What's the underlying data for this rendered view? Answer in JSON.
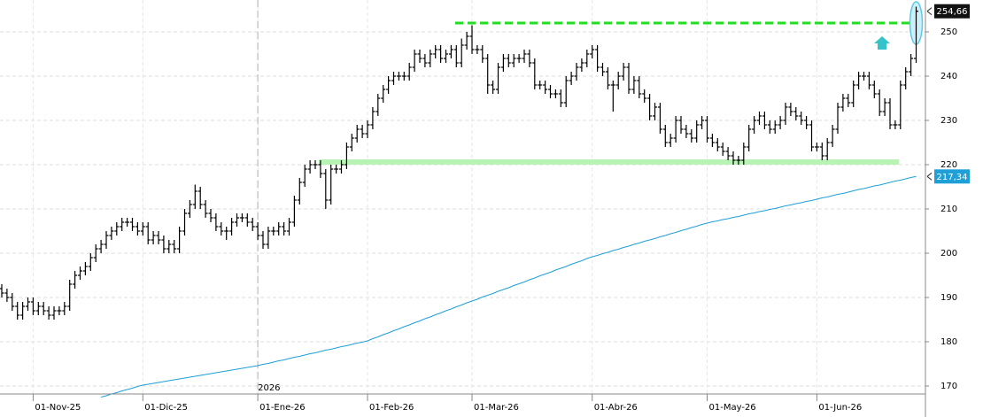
{
  "chart_data": {
    "type": "ohlc",
    "color": "#000000",
    "grid": true,
    "ylim": [
      168.2,
      257.2
    ],
    "yticks": [
      170,
      180,
      190,
      200,
      210,
      220,
      230,
      240,
      250
    ],
    "categories": [
      null,
      null,
      null,
      null,
      null,
      null,
      "01-Nov-25",
      null,
      null,
      null,
      null,
      null,
      null,
      null,
      null,
      null,
      null,
      null,
      null,
      null,
      null,
      null,
      null,
      null,
      null,
      null,
      null,
      "01-Dic-25",
      null,
      null,
      null,
      null,
      null,
      null,
      null,
      null,
      null,
      null,
      null,
      null,
      null,
      null,
      null,
      null,
      null,
      null,
      null,
      null,
      null,
      "01-Ene-26",
      null,
      null,
      null,
      null,
      null,
      null,
      null,
      null,
      null,
      null,
      null,
      null,
      null,
      null,
      null,
      null,
      null,
      null,
      null,
      null,
      "01-Feb-26",
      null,
      null,
      null,
      null,
      null,
      null,
      null,
      null,
      null,
      null,
      null,
      null,
      null,
      null,
      null,
      null,
      null,
      null,
      null,
      "01-Mar-26",
      null,
      null,
      null,
      null,
      null,
      null,
      null,
      null,
      null,
      null,
      null,
      null,
      null,
      null,
      null,
      null,
      null,
      null,
      null,
      null,
      null,
      null,
      "01-Abr-26",
      null,
      null,
      null,
      null,
      null,
      null,
      null,
      null,
      null,
      null,
      null,
      null,
      null,
      null,
      null,
      null,
      null,
      null,
      null,
      null,
      null,
      "01-May-26",
      null,
      null,
      null,
      null,
      null,
      null,
      null,
      null,
      null,
      null,
      null,
      null,
      null,
      null,
      null,
      null,
      null,
      null,
      null,
      null,
      "01-Jun-26",
      null,
      null,
      null,
      null,
      null,
      null,
      null,
      null,
      null,
      null,
      null,
      null,
      null,
      null,
      null,
      null,
      null,
      null,
      null
    ],
    "open": [
      192,
      191,
      190,
      188,
      186,
      188,
      189,
      187,
      188,
      187,
      186,
      187,
      187,
      188,
      193,
      195,
      196,
      197,
      199,
      201,
      202,
      204,
      205,
      206,
      207,
      207,
      206,
      205,
      206,
      203,
      204,
      203,
      201,
      202,
      201,
      205,
      209,
      211,
      214,
      211,
      209,
      208,
      206,
      205,
      205,
      207,
      208,
      208,
      207,
      206,
      204,
      202,
      205,
      205,
      206,
      205,
      207,
      212,
      216,
      219,
      220,
      220,
      218,
      212,
      219,
      219,
      220,
      224,
      226,
      228,
      227,
      229,
      232,
      235,
      237,
      239,
      240,
      240,
      240,
      242,
      245,
      244,
      243,
      245,
      246,
      244,
      245,
      246,
      243,
      247,
      249,
      246,
      246,
      244,
      238,
      237,
      242,
      244,
      243,
      244,
      244,
      245,
      243,
      238,
      238,
      237,
      236,
      236,
      234,
      239,
      240,
      242,
      243,
      245,
      246,
      242,
      241,
      238,
      238,
      240,
      242,
      237,
      239,
      236,
      235,
      231,
      233,
      228,
      225,
      226,
      230,
      228,
      227,
      226,
      229,
      230,
      226,
      225,
      224,
      223,
      222,
      221,
      221,
      224,
      228,
      230,
      231,
      229,
      228,
      229,
      230,
      233,
      232,
      231,
      230,
      229,
      224,
      224,
      222,
      225,
      228,
      233,
      235,
      234,
      238,
      240,
      240,
      238,
      236,
      232,
      234,
      229,
      229,
      238,
      241,
      244
    ],
    "high": [
      193,
      192,
      191,
      189,
      189,
      190,
      190,
      189,
      189,
      188,
      188,
      188,
      189,
      194,
      196,
      197,
      198,
      200,
      202,
      203,
      205,
      206,
      207,
      208,
      208,
      208,
      207,
      207,
      207,
      205,
      205,
      204,
      203,
      203,
      206,
      210,
      212,
      215.5,
      215,
      212,
      210,
      209,
      207,
      206,
      208,
      209,
      209,
      209,
      208,
      207,
      205,
      206,
      206,
      207,
      207,
      208,
      213,
      217,
      220,
      221,
      221,
      221,
      219,
      220,
      220,
      221,
      225,
      227,
      229,
      229,
      230,
      233,
      236,
      238,
      240,
      241,
      241,
      241,
      243,
      246,
      246,
      245,
      246,
      247,
      247,
      246,
      247,
      247,
      248.5,
      250,
      251.5,
      247,
      247,
      245,
      239,
      243,
      245,
      245,
      245,
      245,
      246,
      246,
      244,
      239,
      239,
      238,
      237,
      237,
      240,
      241,
      243,
      244,
      246,
      247,
      247,
      243,
      242,
      239,
      241,
      243,
      243,
      240,
      240,
      237,
      236,
      234,
      234,
      229,
      227,
      231,
      231,
      229,
      228,
      230,
      231,
      231,
      227,
      226,
      225,
      224,
      223,
      222,
      225,
      229,
      231,
      232,
      232,
      230,
      230,
      231,
      234,
      234,
      233,
      232,
      231,
      230,
      225,
      225,
      226,
      229,
      234,
      236,
      236,
      239,
      241,
      241,
      241,
      239,
      237,
      235,
      235,
      230,
      239,
      242,
      245,
      255.7
    ],
    "low": [
      190,
      189,
      187,
      185,
      185,
      187,
      186,
      186,
      186,
      185,
      185,
      186,
      186,
      187,
      192,
      194,
      195,
      196,
      198,
      200,
      201,
      203,
      204,
      205,
      206,
      205,
      204,
      204,
      202,
      202,
      202,
      200,
      200,
      200,
      200,
      204,
      208,
      210,
      210,
      208,
      207,
      205,
      204,
      203,
      204,
      206,
      207,
      206,
      205,
      203,
      201,
      201,
      204,
      204,
      204,
      204,
      206,
      211,
      215,
      218,
      219,
      217,
      210,
      211,
      218,
      218,
      219,
      223,
      225,
      226,
      226,
      228,
      231,
      234,
      236,
      238,
      239,
      239,
      239,
      241,
      243,
      242,
      242,
      244,
      243,
      243,
      244,
      242,
      242,
      246,
      245,
      245,
      243,
      236,
      236,
      236,
      241,
      242,
      242,
      243,
      243,
      242,
      237,
      237,
      236,
      235,
      235,
      233,
      233,
      238,
      239,
      241,
      242,
      244,
      241,
      240,
      237,
      232,
      237,
      239,
      236,
      236,
      235,
      234,
      230,
      230,
      227,
      224,
      224,
      225,
      227,
      226,
      225,
      225,
      228,
      225,
      224,
      223,
      222,
      221,
      220,
      220,
      220,
      223,
      227,
      229,
      228,
      227,
      227,
      228,
      229,
      231,
      230,
      229,
      228,
      223,
      223,
      221,
      221,
      224,
      227,
      232,
      233,
      233,
      237,
      239,
      237,
      235,
      231,
      231,
      228,
      228,
      228,
      237,
      240,
      243
    ],
    "close": [
      191,
      190,
      188,
      186,
      188,
      189,
      187,
      188,
      187,
      186,
      187,
      187,
      188,
      193,
      195,
      196,
      197,
      199,
      201,
      202,
      204,
      205,
      206,
      207,
      207,
      206,
      205,
      206,
      203,
      204,
      203,
      201,
      202,
      201,
      205,
      209,
      211,
      214,
      211,
      209,
      208,
      206,
      205,
      205,
      207,
      208,
      208,
      207,
      206,
      204,
      202,
      205,
      205,
      206,
      205,
      207,
      212,
      216,
      219,
      220,
      220,
      218,
      212,
      219,
      219,
      220,
      224,
      226,
      228,
      227,
      229,
      232,
      235,
      237,
      239,
      240,
      240,
      240,
      242,
      245,
      244,
      243,
      245,
      246,
      244,
      245,
      246,
      243,
      247,
      249,
      246,
      246,
      244,
      238,
      237,
      242,
      244,
      243,
      244,
      244,
      245,
      243,
      238,
      238,
      237,
      236,
      236,
      234,
      239,
      240,
      242,
      243,
      245,
      246,
      242,
      241,
      238,
      238,
      240,
      242,
      237,
      239,
      236,
      235,
      231,
      233,
      228,
      225,
      226,
      230,
      228,
      227,
      226,
      229,
      230,
      226,
      225,
      224,
      223,
      222,
      221,
      221,
      224,
      228,
      230,
      231,
      229,
      228,
      229,
      230,
      233,
      232,
      231,
      230,
      229,
      224,
      224,
      222,
      225,
      228,
      233,
      235,
      234,
      238,
      240,
      240,
      238,
      236,
      232,
      234,
      229,
      229,
      238,
      241,
      244,
      254.66
    ],
    "moving_average": {
      "color": "#1e9fd8",
      "values": [
        null,
        null,
        null,
        null,
        null,
        null,
        null,
        null,
        null,
        null,
        null,
        null,
        null,
        null,
        null,
        null,
        null,
        null,
        null,
        167.5,
        167.8,
        168.2,
        168.5,
        168.9,
        169.2,
        169.5,
        169.9,
        170.2,
        170.4,
        170.6,
        170.8,
        171.0,
        171.2,
        171.4,
        171.6,
        171.8,
        172.0,
        172.2,
        172.4,
        172.6,
        172.8,
        173.0,
        173.2,
        173.4,
        173.6,
        173.8,
        174.0,
        174.2,
        174.4,
        174.6,
        174.9,
        175.1,
        175.4,
        175.7,
        175.9,
        176.2,
        176.5,
        176.7,
        177.0,
        177.3,
        177.5,
        177.8,
        178.1,
        178.3,
        178.6,
        178.9,
        179.1,
        179.4,
        179.7,
        179.9,
        180.2,
        180.7,
        181.1,
        181.6,
        182.0,
        182.5,
        182.9,
        183.4,
        183.8,
        184.3,
        184.7,
        185.2,
        185.6,
        186.1,
        186.5,
        187.0,
        187.4,
        187.9,
        188.3,
        188.8,
        189.2,
        189.6,
        190.1,
        190.5,
        190.9,
        191.4,
        191.8,
        192.2,
        192.7,
        193.1,
        193.5,
        194.0,
        194.4,
        194.9,
        195.3,
        195.7,
        196.2,
        196.6,
        197.0,
        197.5,
        197.9,
        198.3,
        198.8,
        199.2,
        199.5,
        199.9,
        200.2,
        200.6,
        200.9,
        201.3,
        201.6,
        202.0,
        202.3,
        202.7,
        203.0,
        203.3,
        203.7,
        204.0,
        204.4,
        204.7,
        205.1,
        205.4,
        205.8,
        206.1,
        206.5,
        206.8,
        207.1,
        207.3,
        207.6,
        207.8,
        208.1,
        208.3,
        208.6,
        208.9,
        209.1,
        209.4,
        209.6,
        209.9,
        210.1,
        210.4,
        210.7,
        210.9,
        211.2,
        211.4,
        211.7,
        211.9,
        212.2,
        212.5,
        212.7,
        213.0,
        213.3,
        213.5,
        213.8,
        214.1,
        214.4,
        214.6,
        214.9,
        215.2,
        215.4,
        215.7,
        216.0,
        216.3,
        216.5,
        216.8,
        217.1,
        217.34
      ],
      "last": {
        "value": 217.34,
        "label": "217,34"
      }
    },
    "last_price": {
      "value": 254.66,
      "label": "254,66"
    },
    "resistance_level": 252,
    "support_level": 220.6,
    "year_divider": {
      "label": "2026",
      "at": "01-Ene-26"
    }
  }
}
